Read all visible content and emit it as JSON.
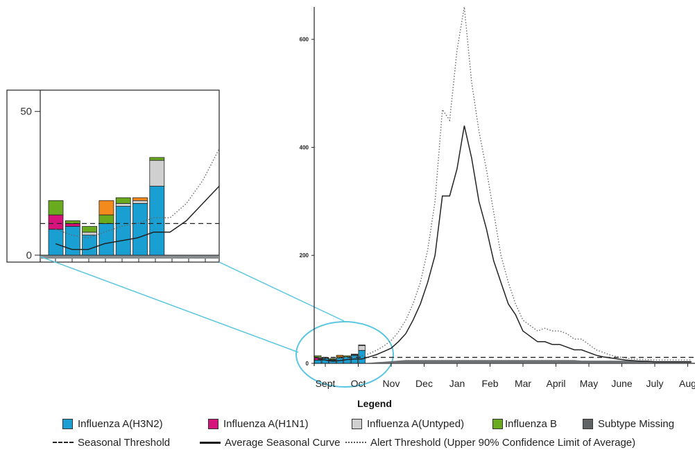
{
  "chart_data": [
    {
      "id": "main",
      "type": "bar+line",
      "x_labels": [
        "Sept",
        "Oct",
        "Nov",
        "Dec",
        "Jan",
        "Feb",
        "Mar",
        "April",
        "May",
        "June",
        "July",
        "Aug"
      ],
      "y_ticks": [
        0,
        200,
        400,
        600
      ],
      "ylim": [
        0,
        660
      ],
      "weeks": 52,
      "bar_series": [
        {
          "name": "Influenza A(H3N2)",
          "color": "#1a9fd3",
          "values": [
            6,
            9,
            6,
            10,
            12,
            15,
            24
          ]
        },
        {
          "name": "Influenza A(H1N1)",
          "color": "#d6137a",
          "values": [
            4,
            1,
            0,
            0,
            0,
            0,
            0
          ]
        },
        {
          "name": "Influenza A(Untyped)",
          "color": "#d0d0d0",
          "values": [
            0,
            0,
            1,
            0,
            0,
            1,
            9
          ]
        },
        {
          "name": "Influenza B",
          "color": "#6aaa1e",
          "values": [
            4,
            1,
            2,
            2,
            2,
            0,
            1
          ]
        },
        {
          "name": "Other",
          "color": "#f28a1d",
          "values": [
            0,
            0,
            0,
            3,
            0,
            1,
            0
          ]
        }
      ],
      "subtype_missing": [
        0,
        0,
        0,
        0,
        0,
        0,
        0,
        1,
        2,
        3,
        4,
        5,
        6,
        6,
        6,
        6,
        6,
        6,
        6,
        6,
        6,
        6,
        6,
        6,
        6,
        6,
        6,
        6,
        6,
        6,
        6,
        6,
        6,
        6,
        6,
        6,
        5,
        5,
        5,
        5,
        5,
        5,
        5,
        5,
        5,
        4,
        4,
        4,
        4,
        4,
        4,
        4
      ],
      "seasonal_threshold": 11,
      "average_curve": [
        8,
        6,
        4,
        5,
        7,
        8,
        8,
        12,
        16,
        22,
        28,
        40,
        55,
        80,
        110,
        150,
        200,
        310,
        310,
        360,
        440,
        380,
        300,
        250,
        190,
        150,
        110,
        90,
        60,
        50,
        40,
        40,
        35,
        35,
        30,
        25,
        25,
        20,
        15,
        12,
        10,
        8,
        6,
        5,
        4,
        4,
        3,
        3,
        3,
        3,
        3,
        3
      ],
      "alert_threshold": [
        12,
        10,
        8,
        10,
        12,
        12,
        14,
        18,
        24,
        32,
        42,
        58,
        80,
        110,
        150,
        210,
        300,
        470,
        450,
        580,
        660,
        520,
        430,
        360,
        280,
        200,
        150,
        110,
        80,
        70,
        60,
        65,
        60,
        60,
        55,
        45,
        45,
        35,
        25,
        20,
        15,
        12,
        10,
        8,
        7,
        7,
        6,
        6,
        6,
        6,
        6,
        6
      ]
    },
    {
      "id": "inset",
      "type": "bar+line",
      "y_ticks": [
        0,
        50
      ],
      "ylim": [
        0,
        55
      ],
      "bar_series": [
        {
          "name": "Influenza A(H3N2)",
          "color": "#1a9fd3",
          "values": [
            9,
            10,
            7,
            11,
            17,
            18,
            24
          ]
        },
        {
          "name": "Influenza A(H1N1)",
          "color": "#d6137a",
          "values": [
            5,
            1,
            0,
            0,
            0,
            0,
            0
          ]
        },
        {
          "name": "Influenza A(Untyped)",
          "color": "#d0d0d0",
          "values": [
            0,
            0,
            1,
            0,
            1,
            1,
            9
          ]
        },
        {
          "name": "Influenza B",
          "color": "#6aaa1e",
          "values": [
            5,
            1,
            2,
            3,
            2,
            0,
            1
          ]
        },
        {
          "name": "Other",
          "color": "#f28a1d",
          "values": [
            0,
            0,
            0,
            5,
            0,
            1,
            0
          ]
        }
      ],
      "seasonal_threshold": 11,
      "average_curve": [
        4,
        2,
        2,
        4,
        5,
        6,
        8,
        8,
        12,
        18,
        24
      ],
      "alert_threshold": [
        9,
        7,
        6,
        8,
        10,
        11,
        13,
        13,
        18,
        26,
        37
      ]
    }
  ],
  "legend": {
    "title": "Legend",
    "items": [
      {
        "label": "Influenza A(H3N2)",
        "color": "#1a9fd3"
      },
      {
        "label": "Influenza A(H1N1)",
        "color": "#d6137a"
      },
      {
        "label": "Influenza A(Untyped)",
        "color": "#d0d0d0"
      },
      {
        "label": "Influenza B",
        "color": "#6aaa1e"
      },
      {
        "label": "Subtype Missing",
        "color": "#5f6366"
      }
    ],
    "lines": [
      {
        "label": "Seasonal Threshold",
        "style": "dashed"
      },
      {
        "label": "Average Seasonal Curve",
        "style": "solid"
      },
      {
        "label": "Alert Threshold (Upper 90% Confidence Limit of Average)",
        "style": "dotted"
      }
    ]
  },
  "colors": {
    "zoom_callout": "#5bc6e0",
    "axis": "#222222"
  }
}
